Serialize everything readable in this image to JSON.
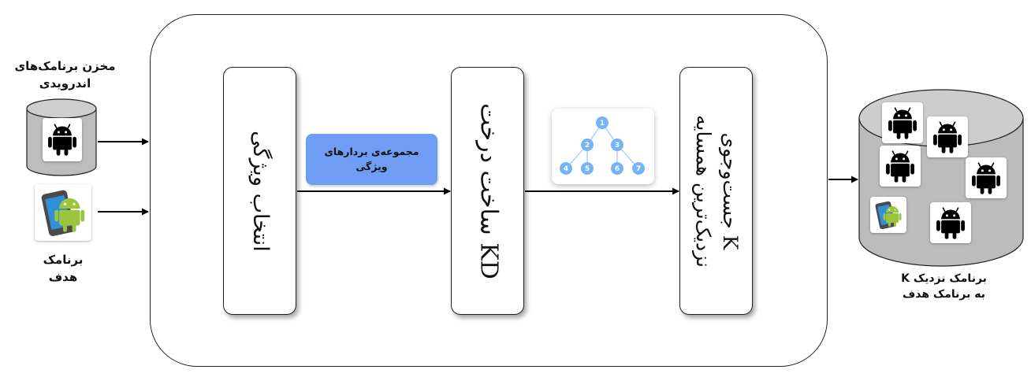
{
  "repository": {
    "title_line1": "مخزن برنامک‌های",
    "title_line2": "اندرویدی",
    "icon": "android-icon"
  },
  "target_app": {
    "label_line1": "برنامک",
    "label_line2": "هدف",
    "icon": "android-phone-icon"
  },
  "stages": {
    "feature_selection": "انتخاب ویژگی",
    "kd_tree": "ساخت درخت KD",
    "knn_line1": "جست‌وجوی K",
    "knn_line2": "نزدیک‌ترین همسایه"
  },
  "feature_vectors": {
    "line1": "مجموعه‌ی بردارهای",
    "line2": "ویژگی"
  },
  "kd_tree_nodes": [
    "1",
    "2",
    "3",
    "4",
    "5",
    "6",
    "7"
  ],
  "output": {
    "label_line1": "K برنامک نزدیک",
    "label_line2": "به برنامک هدف"
  },
  "colors": {
    "accent_box": "#6f9df4",
    "tree_node": "#74b4f7",
    "cylinder": "#bdbdbd"
  }
}
